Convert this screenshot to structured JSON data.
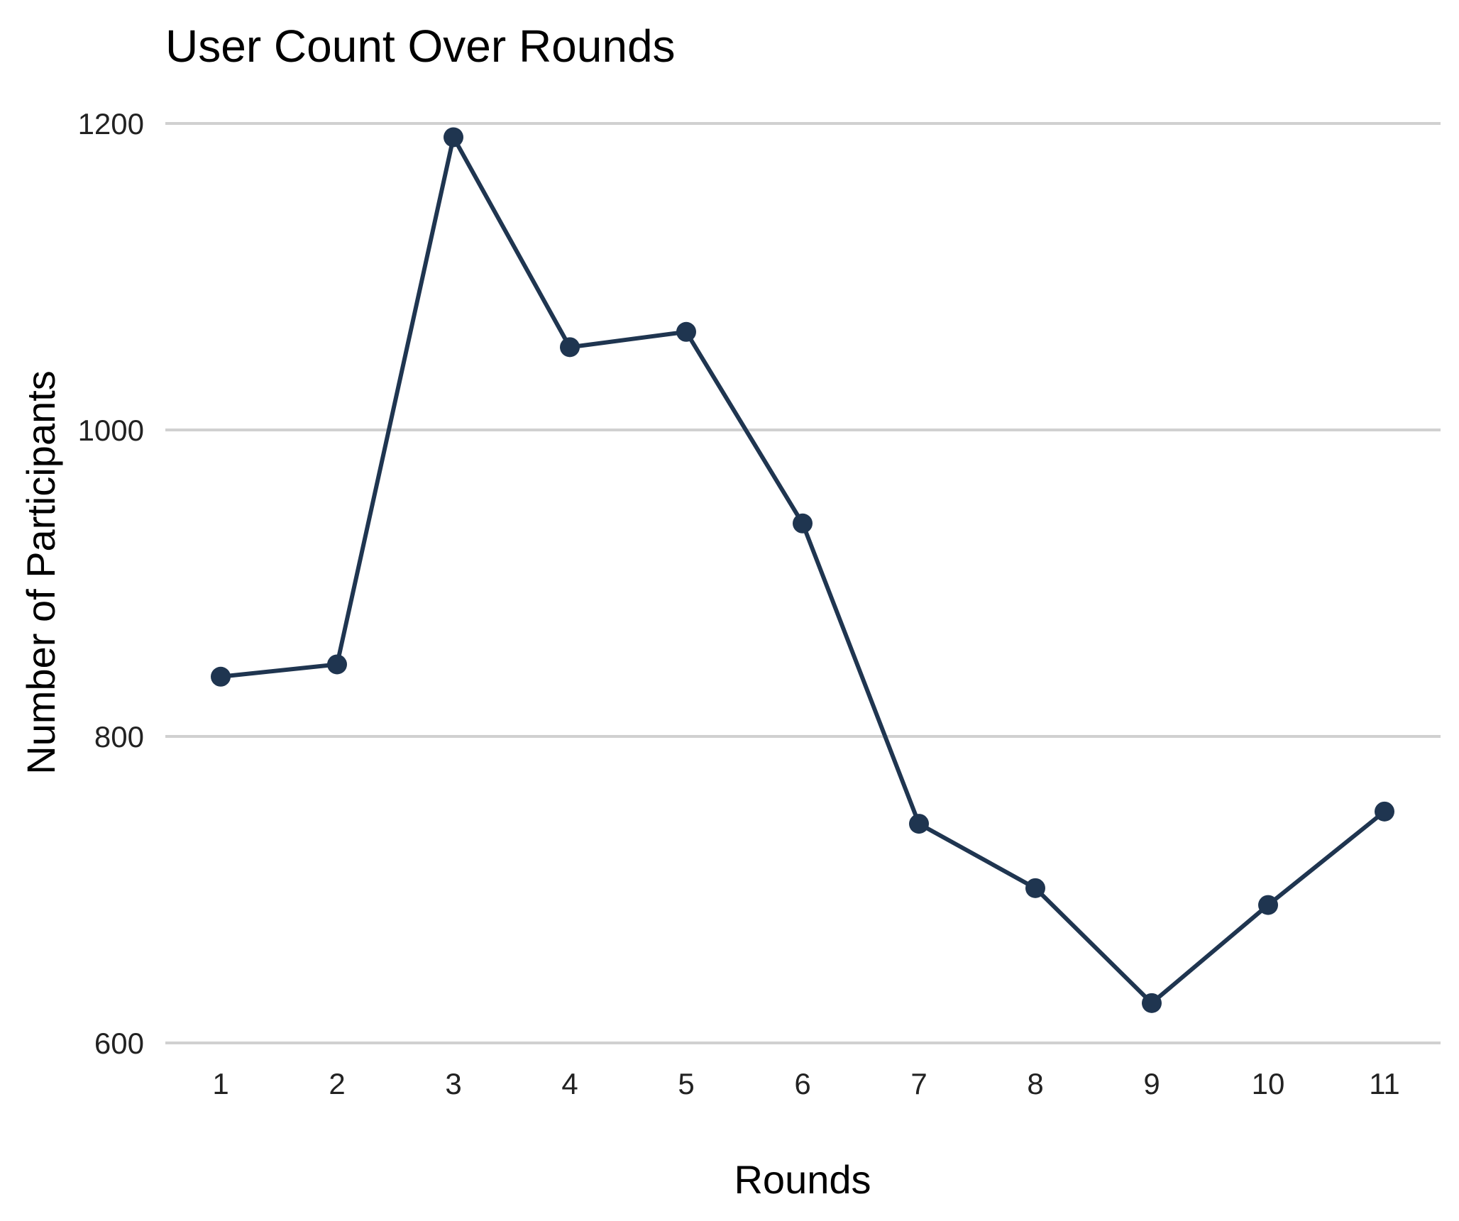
{
  "chart_data": {
    "type": "line",
    "title": "User Count Over Rounds",
    "xlabel": "Rounds",
    "ylabel": "Number of Participants",
    "categories": [
      "1",
      "2",
      "3",
      "4",
      "5",
      "6",
      "7",
      "8",
      "9",
      "10",
      "11"
    ],
    "series": [
      {
        "values": [
          839,
          847,
          1191,
          1054,
          1064,
          939,
          743,
          701,
          626,
          690,
          751
        ]
      }
    ],
    "y_ticks": [
      "600",
      "800",
      "1000",
      "1200"
    ],
    "ylim": [
      600,
      1200
    ],
    "grid": "horizontal",
    "legend": "none",
    "colors": {
      "series": "#1f3550",
      "grid": "#d0d0d0"
    }
  }
}
